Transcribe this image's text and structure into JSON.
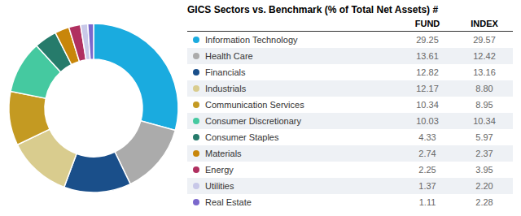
{
  "chart_data": {
    "type": "pie",
    "title": "GICS Sectors vs. Benchmark (% of Total Net Assets) #",
    "categories": [
      "Information Technology",
      "Health Care",
      "Financials",
      "Industrials",
      "Communication Services",
      "Consumer Discretionary",
      "Consumer Staples",
      "Materials",
      "Energy",
      "Utilities",
      "Real Estate"
    ],
    "series": [
      {
        "name": "FUND",
        "values": [
          29.25,
          13.61,
          12.82,
          12.17,
          10.34,
          10.03,
          4.33,
          2.74,
          2.25,
          1.37,
          1.11
        ]
      },
      {
        "name": "INDEX",
        "values": [
          29.57,
          12.42,
          13.16,
          8.8,
          8.95,
          10.34,
          5.97,
          2.37,
          3.95,
          2.2,
          2.28
        ],
        "value_labels": [
          "29.57",
          "12.42",
          "13.16",
          "8.80",
          "8.95",
          "10.34",
          "5.97",
          "2.37",
          "3.95",
          "2.20",
          "2.28"
        ]
      }
    ],
    "colors": [
      "#1AABDF",
      "#ABABAB",
      "#1A4F8A",
      "#D9CC8E",
      "#C49A22",
      "#45C9A0",
      "#267B6B",
      "#C8860A",
      "#B03060",
      "#C8C8E8",
      "#7B68CC"
    ]
  }
}
